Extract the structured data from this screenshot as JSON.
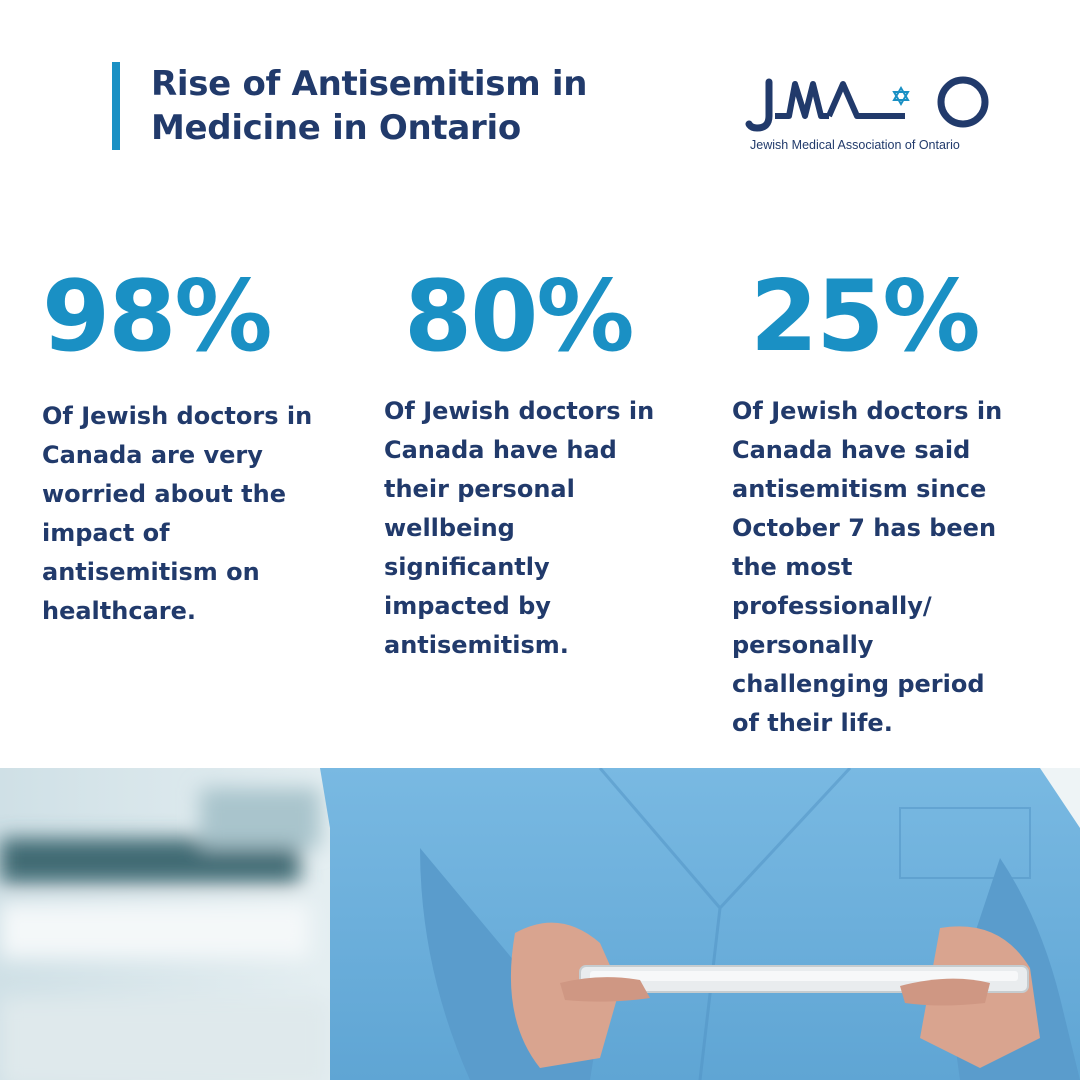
{
  "header": {
    "title_lines": [
      "Rise of Antisemitism in",
      "Medicine in Ontario"
    ]
  },
  "logo": {
    "caption": "Jewish Medical Association of Ontario",
    "letters": [
      "J",
      "M",
      "A",
      "O"
    ]
  },
  "stats": [
    {
      "value": "98%",
      "lines": [
        "Of Jewish doctors in",
        "Canada are very",
        "worried about the",
        "impact of",
        "antisemitism on",
        "healthcare."
      ]
    },
    {
      "value": "80%",
      "lines": [
        "Of Jewish doctors in",
        "Canada have had",
        "their personal",
        "wellbeing",
        "significantly",
        "impacted by",
        "antisemitism."
      ]
    },
    {
      "value": "25%",
      "lines": [
        "Of Jewish doctors in",
        "Canada have said",
        "antisemitism since",
        "October 7 has been",
        "the most",
        "professionally/",
        "personally",
        "challenging period",
        "of their life."
      ]
    }
  ],
  "colors": {
    "accent_blue": "#1a90c4",
    "navy": "#213a6b",
    "scrubs_blue": "#6fb2dc"
  },
  "photo": {
    "icon": "doctor-holding-tablet-photo"
  }
}
